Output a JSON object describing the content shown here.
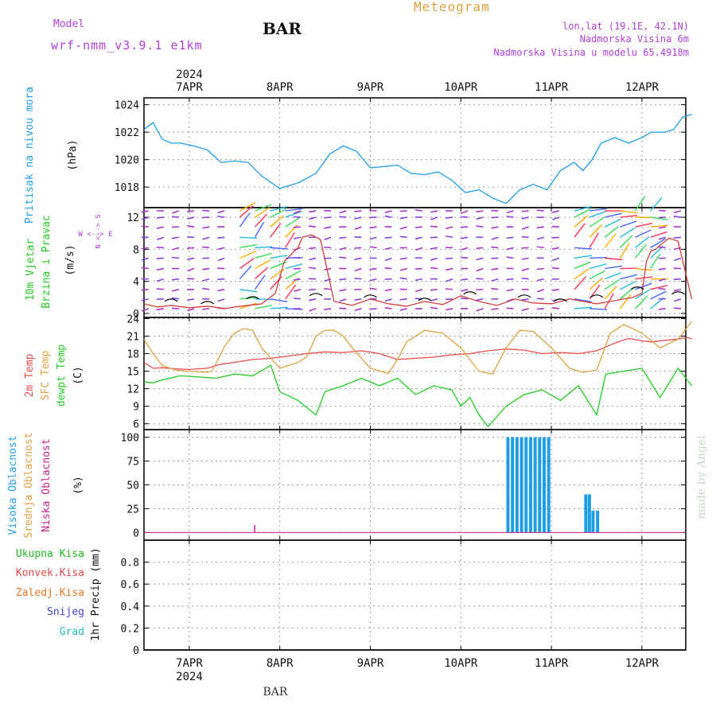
{
  "header": {
    "title": "Meteogram",
    "station": "BAR",
    "model_label": "Model",
    "model_name": "wrf-nmm_v3.9.1 e1km",
    "coords": "lon,lat (19.1E, 42.1N)",
    "elevation": "Nadmorska Visina 6m",
    "model_elevation": "Nadmorska Visina u modelu 65.4918m",
    "bottom_station": "BAR",
    "credit": "made by Angel"
  },
  "time_axis": {
    "year": "2024",
    "day_labels": [
      "7APR",
      "8APR",
      "9APR",
      "10APR",
      "11APR",
      "12APR"
    ]
  },
  "panels": {
    "pressure": {
      "label": "Pritisak na nivou mora",
      "unit": "(hPa)"
    },
    "wind": {
      "label1": "10m Vjetar",
      "label2": "Brzina i Pravac",
      "unit": "(m/s)",
      "compass_ns": "N <--> S",
      "compass_we": "W <--> E"
    },
    "temp": {
      "label1": "2m Temp",
      "label2": "SFC Temp",
      "label3": "dewpt Temp",
      "unit": "(C)"
    },
    "cloud": {
      "label1": "Visoka Oblacnost",
      "label2": "Srednja Oblacnost",
      "label3": "Niska Oblacnost",
      "unit": "(%)"
    },
    "precip": {
      "legend": [
        "Ukupna Kisa",
        "Konvek.Kisa",
        "Zaledj.Kisa",
        "Snijeg",
        "Grad"
      ],
      "unit": "1hr Precip (mm)"
    }
  },
  "colors": {
    "pressure": "#1e9ee6",
    "temp2m": "#e84a4a",
    "sfc": "#e0a040",
    "dew": "#22cc22",
    "cloud_high": "#1e9ee6",
    "cloud_low": "#cc1f8f",
    "rain": "#22bb22",
    "conv": "#e84a4a",
    "frz": "#ee7722",
    "snow": "#4444dd",
    "grad": "#22bbbb",
    "purple": "#b040d8",
    "orange": "#e0a040"
  },
  "chart_data": [
    {
      "type": "line",
      "name": "pressure",
      "ylim": [
        1016.5,
        1024.5
      ],
      "yticks": [
        1018,
        1020,
        1022,
        1024
      ],
      "x": [
        0,
        0.1,
        0.2,
        0.3,
        0.4,
        0.55,
        0.7,
        0.85,
        1.0,
        1.15,
        1.3,
        1.5,
        1.7,
        1.9,
        2.05,
        2.2,
        2.35,
        2.5,
        2.65,
        2.8,
        2.95,
        3.1,
        3.25,
        3.4,
        3.55,
        3.7,
        3.85,
        4.0,
        4.15,
        4.3,
        4.45,
        4.6,
        4.75,
        4.85,
        4.95,
        5.05,
        5.2,
        5.35,
        5.5,
        5.6,
        5.75,
        5.85,
        5.95,
        6.05
      ],
      "y": [
        1022.2,
        1022.7,
        1021.5,
        1021.2,
        1021.2,
        1021.0,
        1020.7,
        1019.8,
        1019.9,
        1019.8,
        1018.8,
        1017.9,
        1018.3,
        1019.0,
        1020.4,
        1021.0,
        1020.6,
        1019.4,
        1019.5,
        1019.6,
        1019.0,
        1018.9,
        1019.1,
        1018.5,
        1017.6,
        1017.8,
        1017.2,
        1016.8,
        1017.8,
        1018.2,
        1017.8,
        1019.2,
        1019.8,
        1019.2,
        1020.0,
        1021.2,
        1021.6,
        1021.2,
        1021.6,
        1022.0,
        1022.0,
        1022.2,
        1023.1,
        1023.3
      ]
    },
    {
      "type": "line",
      "name": "wind",
      "ylim": [
        -0.5,
        13.2
      ],
      "yticks": [
        0,
        4,
        8,
        12
      ],
      "series": [
        {
          "name": "speed",
          "x": [
            0,
            0.15,
            0.3,
            0.5,
            0.7,
            0.9,
            1.0,
            1.3,
            1.45,
            1.55,
            1.7,
            1.75,
            1.85,
            1.95,
            2.1,
            2.3,
            2.5,
            2.7,
            2.9,
            3.1,
            3.3,
            3.5,
            3.7,
            3.9,
            4.1,
            4.3,
            4.5,
            4.7,
            4.9,
            5.0,
            5.2,
            5.4,
            5.5,
            5.55,
            5.6,
            5.65,
            5.7,
            5.8,
            5.9,
            6.05
          ],
          "y": [
            1.2,
            0.8,
            1.0,
            0.7,
            0.9,
            0.6,
            0.8,
            1.2,
            2.5,
            6.5,
            8.2,
            9.5,
            9.8,
            9.2,
            1.5,
            1.0,
            1.8,
            1.2,
            0.9,
            1.5,
            1.1,
            2.2,
            1.5,
            1.0,
            1.8,
            1.3,
            1.2,
            1.8,
            1.4,
            1.2,
            1.6,
            2.0,
            2.5,
            6.5,
            7.8,
            8.0,
            8.5,
            9.4,
            9.0,
            1.8
          ]
        },
        {
          "name": "gust",
          "x": [
            0.3,
            0.7,
            1.2,
            1.9,
            2.5,
            3.1,
            3.6,
            4.2,
            4.6,
            5.0,
            5.45,
            5.9
          ],
          "y": [
            1.5,
            1.2,
            1.8,
            2.2,
            2.0,
            1.6,
            2.4,
            2.0,
            1.5,
            2.0,
            3.0,
            2.4
          ]
        }
      ]
    },
    {
      "type": "line",
      "name": "temperature",
      "ylim": [
        5,
        24.2
      ],
      "yticks": [
        6,
        9,
        12,
        15,
        18,
        21,
        24
      ],
      "series": [
        {
          "name": "2m",
          "x": [
            0,
            0.1,
            0.2,
            0.35,
            0.5,
            0.7,
            0.85,
            1.0,
            1.2,
            1.4,
            1.6,
            1.8,
            2.0,
            2.2,
            2.4,
            2.6,
            2.8,
            3.0,
            3.2,
            3.4,
            3.6,
            3.8,
            4.0,
            4.2,
            4.4,
            4.6,
            4.8,
            5.0,
            5.2,
            5.35,
            5.5,
            5.6,
            5.7,
            5.9,
            6.0,
            6.05
          ],
          "y": [
            16.5,
            15.5,
            15.6,
            15.4,
            15.3,
            15.5,
            16.2,
            16.5,
            17.0,
            17.2,
            17.6,
            18.0,
            18.3,
            18.2,
            18.5,
            18.0,
            17.0,
            17.2,
            17.4,
            17.8,
            18.0,
            18.5,
            18.8,
            18.6,
            18.0,
            18.2,
            18.0,
            18.5,
            19.8,
            20.6,
            20.2,
            20.0,
            20.2,
            20.5,
            20.8,
            20.5
          ]
        },
        {
          "name": "SFC",
          "x": [
            0,
            0.1,
            0.2,
            0.35,
            0.5,
            0.7,
            0.75,
            0.9,
            1.0,
            1.1,
            1.2,
            1.3,
            1.5,
            1.7,
            1.8,
            1.9,
            2.0,
            2.1,
            2.2,
            2.3,
            2.5,
            2.7,
            2.8,
            2.9,
            3.1,
            3.3,
            3.5,
            3.7,
            3.85,
            4.0,
            4.15,
            4.3,
            4.5,
            4.7,
            4.85,
            5.0,
            5.15,
            5.3,
            5.5,
            5.7,
            5.9,
            6.05
          ],
          "y": [
            20.5,
            18.0,
            16.0,
            15.2,
            15.0,
            14.8,
            15.0,
            19.5,
            21.5,
            22.3,
            22.0,
            19.0,
            15.5,
            16.5,
            17.5,
            21.0,
            22.0,
            22.0,
            21.0,
            19.0,
            15.5,
            14.6,
            17.0,
            20.0,
            22.0,
            21.5,
            19.0,
            15.0,
            14.5,
            19.0,
            22.0,
            21.8,
            19.0,
            15.5,
            14.8,
            15.2,
            21.5,
            23.0,
            21.5,
            19.0,
            20.5,
            23.5
          ]
        },
        {
          "name": "dewpt",
          "x": [
            0,
            0.1,
            0.2,
            0.4,
            0.6,
            0.8,
            1.0,
            1.2,
            1.4,
            1.5,
            1.7,
            1.9,
            2.0,
            2.2,
            2.4,
            2.6,
            2.8,
            3.0,
            3.2,
            3.4,
            3.5,
            3.6,
            3.7,
            3.8,
            4.0,
            4.2,
            4.4,
            4.6,
            4.8,
            5.0,
            5.1,
            5.3,
            5.5,
            5.7,
            5.9,
            6.05
          ],
          "y": [
            13.2,
            13.0,
            13.5,
            14.2,
            14.0,
            13.8,
            14.5,
            14.2,
            16.0,
            11.5,
            10.0,
            7.5,
            11.5,
            12.5,
            13.8,
            12.5,
            13.8,
            11.0,
            12.5,
            11.8,
            9.0,
            10.5,
            7.5,
            5.5,
            9.0,
            11.0,
            11.8,
            10.0,
            12.5,
            7.5,
            14.5,
            15.0,
            15.5,
            10.5,
            15.5,
            12.5
          ]
        }
      ]
    },
    {
      "type": "bar",
      "name": "cloud",
      "ylim": [
        -8,
        108
      ],
      "yticks": [
        0,
        25,
        50,
        75,
        100
      ],
      "series": [
        {
          "name": "high",
          "x": [
            4.02,
            4.07,
            4.12,
            4.17,
            4.22,
            4.27,
            4.32,
            4.37,
            4.42,
            4.47,
            4.88,
            4.92,
            4.96,
            5.01
          ],
          "values": [
            100,
            100,
            100,
            100,
            100,
            100,
            100,
            100,
            100,
            100,
            40,
            40,
            23,
            23
          ]
        },
        {
          "name": "low",
          "x": [
            1.22
          ],
          "values": [
            8
          ]
        }
      ]
    },
    {
      "type": "line",
      "name": "precip",
      "ylim": [
        0,
        1.0
      ],
      "yticks": [
        0,
        0.2,
        0.4,
        0.6,
        0.8
      ],
      "x": [
        0,
        6.05
      ],
      "y": [
        0,
        0
      ]
    }
  ]
}
